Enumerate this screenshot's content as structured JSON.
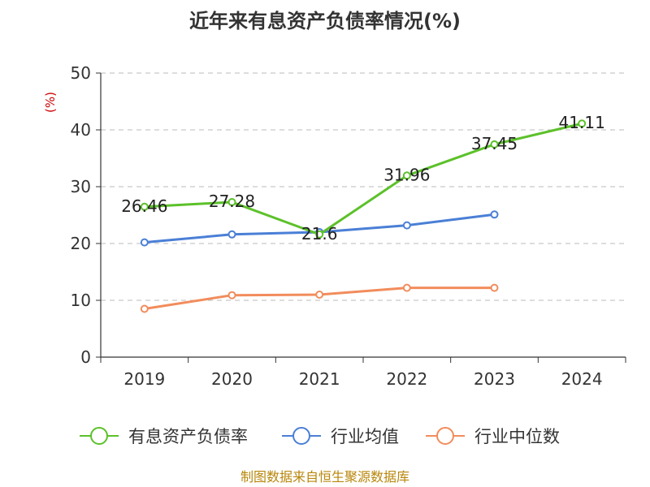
{
  "title": "近年来有息资产负债率情况(%)",
  "y_unit": "(%)",
  "source": "制图数据来自恒生聚源数据库",
  "colors": {
    "unit": "#cc0000",
    "source": "#b8860b",
    "grid": "#bbbbbb",
    "axis": "#333333"
  },
  "chart_data": {
    "type": "line",
    "categories": [
      "2019",
      "2020",
      "2021",
      "2022",
      "2023",
      "2024"
    ],
    "ylim": [
      0,
      50
    ],
    "yticks": [
      0,
      10,
      20,
      30,
      40,
      50
    ],
    "grid": true,
    "legend_position": "bottom",
    "series": [
      {
        "name": "有息资产负债率",
        "color": "#5cc12a",
        "values": [
          26.46,
          27.28,
          21.6,
          31.96,
          37.45,
          41.11
        ],
        "labels": [
          "26.46",
          "27.28",
          "21.6",
          "31.96",
          "37.45",
          "41.11"
        ]
      },
      {
        "name": "行业均值",
        "color": "#4a7fd6",
        "values": [
          20.2,
          21.6,
          22.0,
          23.2,
          25.1,
          null
        ],
        "labels": null
      },
      {
        "name": "行业中位数",
        "color": "#f28c5c",
        "values": [
          8.5,
          10.9,
          11.0,
          12.2,
          12.2,
          null
        ],
        "labels": null
      }
    ]
  }
}
